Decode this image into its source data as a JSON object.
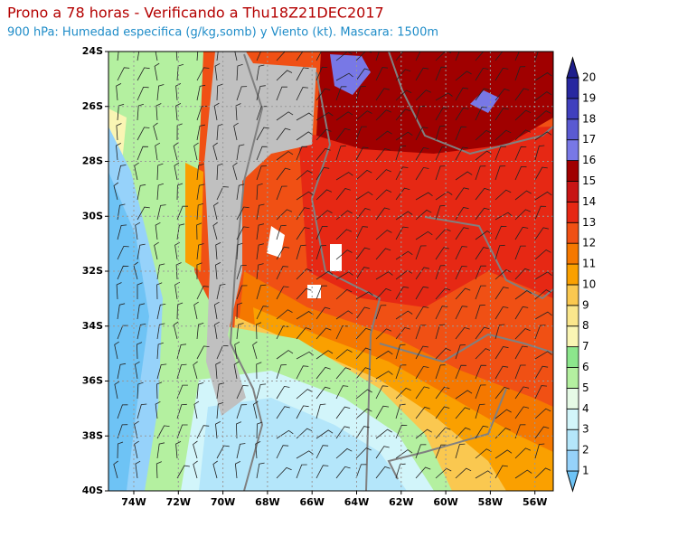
{
  "header": {
    "title": "Prono a 78 horas - Verificando a Thu18Z21DEC2017",
    "subtitle": "900 hPa: Humedad especifica (g/kg,somb) y Viento (kt). Mascara: 1500m"
  },
  "map": {
    "lat_labels": [
      "24S",
      "26S",
      "28S",
      "30S",
      "32S",
      "34S",
      "36S",
      "38S",
      "40S"
    ],
    "lon_labels": [
      "74W",
      "72W",
      "70W",
      "68W",
      "66W",
      "64W",
      "62W",
      "60W",
      "58W",
      "56W"
    ]
  },
  "colorbar": {
    "levels": [
      1,
      2,
      3,
      4,
      5,
      6,
      7,
      8,
      9,
      10,
      11,
      12,
      13,
      14,
      15,
      16,
      17,
      18,
      19,
      20
    ],
    "colors": [
      "#6ec3f5",
      "#96d2fa",
      "#b4e6fa",
      "#d2f5fa",
      "#e6fae6",
      "#b4f0a0",
      "#8ce68c",
      "#faf5b4",
      "#fae68c",
      "#fac850",
      "#faa000",
      "#f57800",
      "#f05014",
      "#e62814",
      "#c81414",
      "#a00000",
      "#7878e6",
      "#5a5ad2",
      "#4040be",
      "#2828a0",
      "#1e1e8c"
    ]
  }
}
